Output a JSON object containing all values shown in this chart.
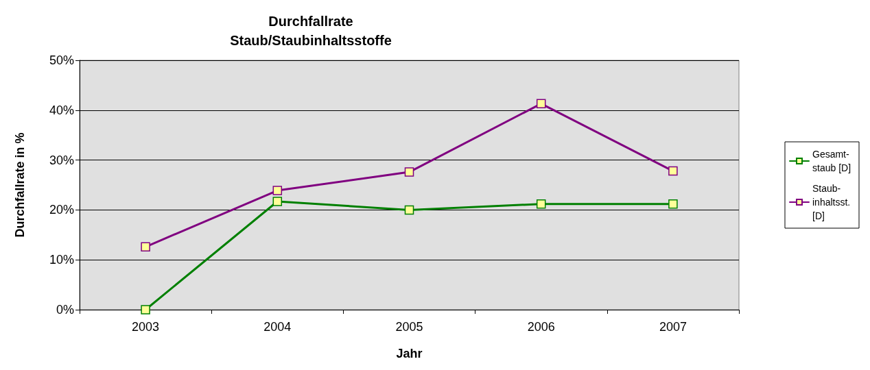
{
  "chart_data": {
    "type": "line",
    "title": "Durchfallrate\nStaub/Staubinhaltsstoffe",
    "xlabel": "Jahr",
    "ylabel": "Durchfallrate in %",
    "categories": [
      "2003",
      "2004",
      "2005",
      "2006",
      "2007"
    ],
    "series": [
      {
        "name": "Gesamt- staub [D]",
        "color": "#008000",
        "values": [
          0,
          21.7,
          20,
          21.2,
          21.2
        ]
      },
      {
        "name": "Staub- inhaltsst. [D]",
        "color": "#800080",
        "values": [
          12.6,
          23.9,
          27.6,
          41.3,
          27.8
        ]
      }
    ],
    "ylim": [
      0,
      50
    ],
    "yticks": [
      {
        "value": 0,
        "label": "0%"
      },
      {
        "value": 10,
        "label": "10%"
      },
      {
        "value": 20,
        "label": "20%"
      },
      {
        "value": 30,
        "label": "30%"
      },
      {
        "value": 40,
        "label": "40%"
      },
      {
        "value": 50,
        "label": "50%"
      }
    ],
    "grid": "y",
    "legend": "right",
    "marker": "square",
    "line_style": "solid"
  }
}
